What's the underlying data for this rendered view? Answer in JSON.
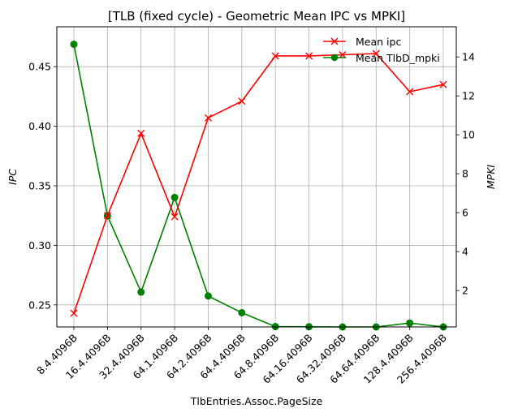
{
  "chart_data": {
    "type": "line",
    "title": "[TLB (fixed cycle) - Geometric Mean IPC vs MPKI]",
    "xlabel": "TlbEntries.Assoc.PageSize",
    "ylabel_left": "IPC",
    "ylabel_right": "MPKI",
    "categories": [
      "8.4.4096B",
      "16.4.4096B",
      "32.4.4096B",
      "64.1.4096B",
      "64.2.4096B",
      "64.4.4096B",
      "64.8.4096B",
      "64.16.4096B",
      "64.32.4096B",
      "64.64.4096B",
      "128.4.4096B",
      "256.4.4096B"
    ],
    "ylim_left": [
      0.2315,
      0.4835
    ],
    "ylim_right": [
      0.13,
      15.55
    ],
    "yticks_left": [
      "0.25",
      "0.30",
      "0.35",
      "0.40",
      "0.45"
    ],
    "yticks_right": [
      "2",
      "4",
      "6",
      "8",
      "10",
      "12",
      "14"
    ],
    "grid": true,
    "legend_position": "upper-right",
    "colors": {
      "ipc": "#ff0000",
      "mpki": "#008000"
    },
    "series": [
      {
        "name": "Mean ipc",
        "axis": "left",
        "marker": "x",
        "color": "#ff0000",
        "values": [
          0.243,
          0.325,
          0.394,
          0.324,
          0.407,
          0.421,
          0.459,
          0.459,
          0.46,
          0.461,
          0.429,
          0.435
        ]
      },
      {
        "name": "Mean TlbD_mpki",
        "axis": "right",
        "marker": "o",
        "color": "#008000",
        "values": [
          14.65,
          5.84,
          1.92,
          6.78,
          1.72,
          0.86,
          0.15,
          0.14,
          0.13,
          0.13,
          0.33,
          0.13
        ]
      }
    ]
  }
}
